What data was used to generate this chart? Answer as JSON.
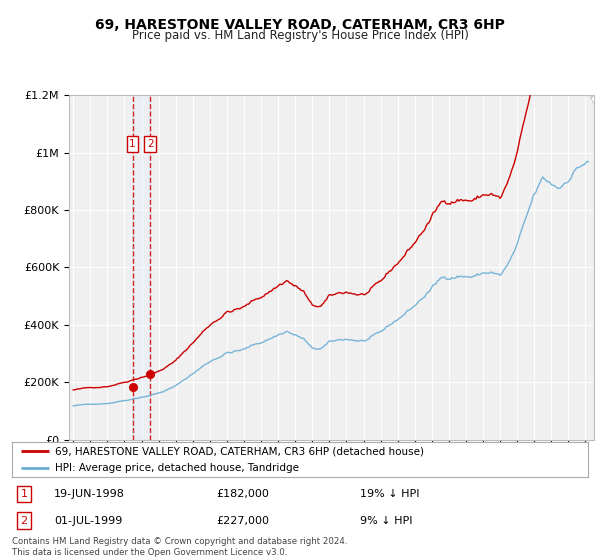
{
  "title": "69, HARESTONE VALLEY ROAD, CATERHAM, CR3 6HP",
  "subtitle": "Price paid vs. HM Land Registry's House Price Index (HPI)",
  "legend_line1": "69, HARESTONE VALLEY ROAD, CATERHAM, CR3 6HP (detached house)",
  "legend_line2": "HPI: Average price, detached house, Tandridge",
  "transaction1_label": "1",
  "transaction1_date": "19-JUN-1998",
  "transaction1_price": "£182,000",
  "transaction1_hpi": "19% ↓ HPI",
  "transaction2_label": "2",
  "transaction2_date": "01-JUL-1999",
  "transaction2_price": "£227,000",
  "transaction2_hpi": "9% ↓ HPI",
  "footnote": "Contains HM Land Registry data © Crown copyright and database right 2024.\nThis data is licensed under the Open Government Licence v3.0.",
  "sale_dates": [
    1998.47,
    1999.5
  ],
  "sale_prices": [
    182000,
    227000
  ],
  "ylim": [
    0,
    1200000
  ],
  "xlim_start": 1994.75,
  "xlim_end": 2025.5,
  "hpi_color": "#6aaed6",
  "price_color": "#cc0000",
  "vline_color": "#cc0000",
  "shade_color": "#ddeeff",
  "background_color": "#ffffff",
  "plot_bg_color": "#f0f0f0",
  "grid_color": "#ffffff"
}
